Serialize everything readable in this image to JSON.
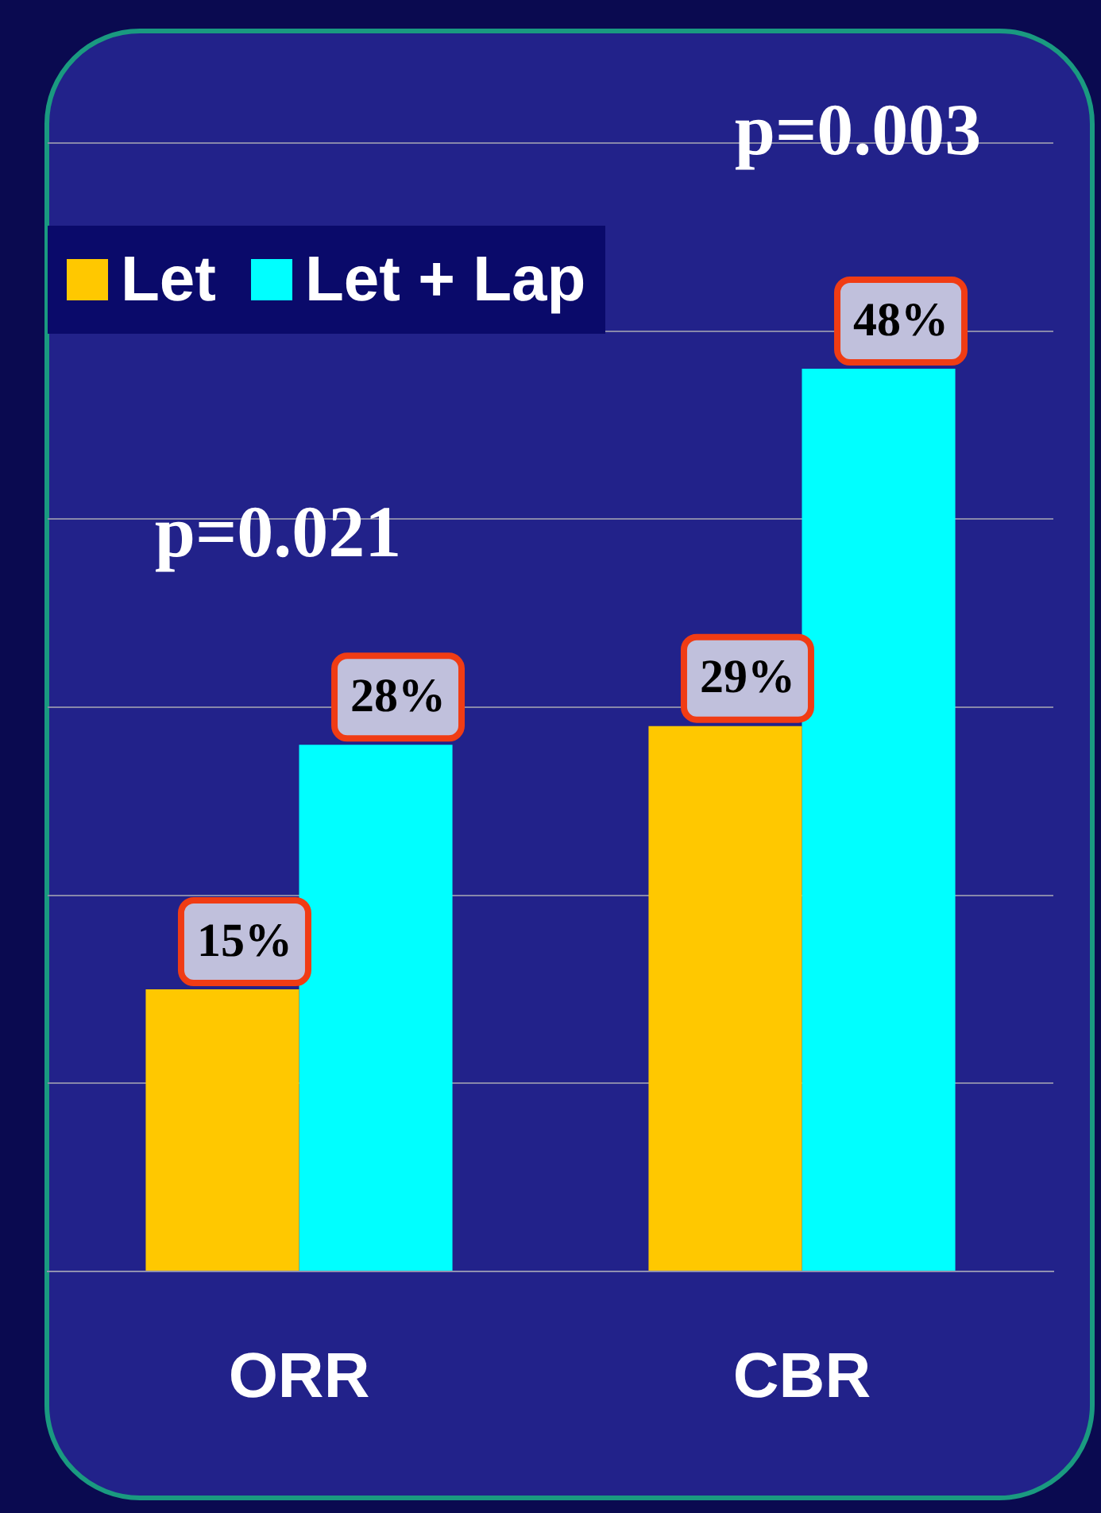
{
  "chart_data": {
    "type": "bar",
    "categories": [
      "ORR",
      "CBR"
    ],
    "series": [
      {
        "name": "Let",
        "color": "#ffc800",
        "values": [
          15,
          29
        ],
        "value_labels": [
          "15%",
          "29%"
        ]
      },
      {
        "name": "Let + Lap",
        "color": "#00ffff",
        "values": [
          28,
          48
        ],
        "value_labels": [
          "28%",
          "48%"
        ]
      }
    ],
    "ylim": [
      0,
      60
    ],
    "yticks": [
      {
        "value": 0,
        "label": null
      },
      {
        "value": 10,
        "label": null
      },
      {
        "value": 20,
        "label": null
      },
      {
        "value": 30,
        "label": null
      },
      {
        "value": 40,
        "label": null
      },
      {
        "value": 50,
        "label": null
      },
      {
        "value": 60,
        "label": null
      }
    ],
    "tick_labels": "x",
    "grid": "y",
    "legend": "top left",
    "annotations": [
      "p=0.021",
      "p=0.003"
    ]
  }
}
